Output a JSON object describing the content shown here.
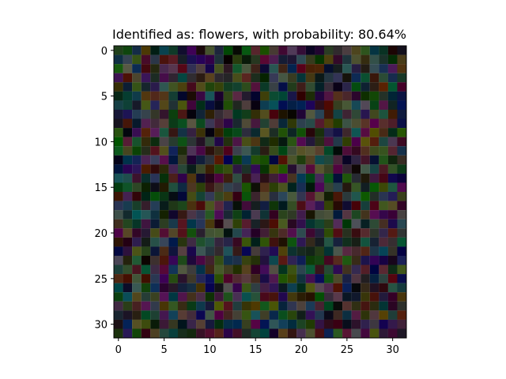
{
  "chart_data": {
    "type": "heatmap",
    "title": "Identified as: flowers, with probability: 80.64%",
    "xlabel": "",
    "ylabel": "",
    "xlim": [
      -0.5,
      31.5
    ],
    "ylim": [
      31.5,
      -0.5
    ],
    "rows": 32,
    "cols": 32,
    "x_ticks": [
      0,
      5,
      10,
      15,
      20,
      25,
      30
    ],
    "y_ticks": [
      0,
      5,
      10,
      15,
      20,
      25,
      30
    ],
    "grid": false,
    "value_encoding": "random RGB noise with channel values roughly 0-0.35",
    "pixel_seed": 8064
  }
}
